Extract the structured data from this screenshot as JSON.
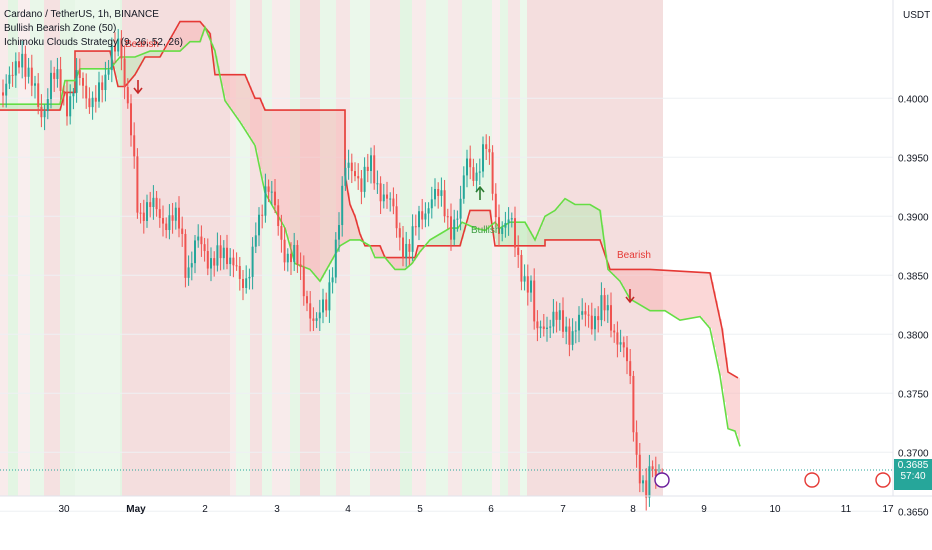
{
  "legend": {
    "symbol": "Cardano / TetherUS, 1h, BINANCE",
    "indicator1": "Bullish Bearish Zone (50)",
    "indicator2": "Ichimoku Clouds Strategy (9, 26, 52, 26)"
  },
  "axis": {
    "currency": "USDT",
    "price_ticks": [
      "0.4000",
      "0.3950",
      "0.3900",
      "0.3850",
      "0.3800",
      "0.3750",
      "0.3700",
      "0.3650"
    ],
    "date_ticks": [
      "30",
      "May",
      "2",
      "3",
      "4",
      "5",
      "6",
      "7",
      "8",
      "9",
      "10",
      "11",
      "17"
    ]
  },
  "last_price": {
    "value": "0.3685",
    "countdown": "57:40"
  },
  "colors": {
    "bull": "#26a69a",
    "bear": "#ef5350",
    "lead_red": "#e53935",
    "lead_green": "#66dd44",
    "zone_red": "#f4dede",
    "zone_green": "#e3f5e3",
    "cloud_red": "#f7b7b7",
    "cloud_green": "#bde8b6"
  },
  "annotations": [
    {
      "text": "Bearish",
      "kind": "bear"
    },
    {
      "text": "Bullish",
      "kind": "bull"
    },
    {
      "text": "Bearish",
      "kind": "bear"
    }
  ],
  "chart_data": {
    "type": "candlestick",
    "title": "Cardano / TetherUS, 1h, BINANCE",
    "ylabel": "USDT",
    "y_range": [
      0.3645,
      0.4065
    ],
    "x_ticks": [
      "30",
      "May",
      "2",
      "3",
      "4",
      "5",
      "6",
      "7",
      "8",
      "9",
      "10",
      "11",
      "17"
    ],
    "price_path": [
      [
        0,
        0.4005
      ],
      [
        10,
        0.401
      ],
      [
        20,
        0.4045
      ],
      [
        30,
        0.401
      ],
      [
        40,
        0.3985
      ],
      [
        50,
        0.402
      ],
      [
        60,
        0.4005
      ],
      [
        65,
        0.3995
      ],
      [
        75,
        0.402
      ],
      [
        85,
        0.3995
      ],
      [
        95,
        0.401
      ],
      [
        105,
        0.4005
      ],
      [
        110,
        0.404
      ],
      [
        118,
        0.406
      ],
      [
        125,
        0.3995
      ],
      [
        130,
        0.3965
      ],
      [
        133,
        0.3945
      ],
      [
        136,
        0.392
      ],
      [
        138,
        0.389
      ],
      [
        140,
        0.391
      ],
      [
        150,
        0.3905
      ],
      [
        160,
        0.39
      ],
      [
        170,
        0.39
      ],
      [
        180,
        0.3885
      ],
      [
        185,
        0.3855
      ],
      [
        195,
        0.388
      ],
      [
        205,
        0.386
      ],
      [
        215,
        0.3875
      ],
      [
        225,
        0.3855
      ],
      [
        235,
        0.387
      ],
      [
        240,
        0.3845
      ],
      [
        245,
        0.3835
      ],
      [
        250,
        0.385
      ],
      [
        255,
        0.3895
      ],
      [
        265,
        0.3925
      ],
      [
        275,
        0.39
      ],
      [
        285,
        0.387
      ],
      [
        295,
        0.386
      ],
      [
        305,
        0.3835
      ],
      [
        315,
        0.3805
      ],
      [
        325,
        0.3825
      ],
      [
        330,
        0.3855
      ],
      [
        340,
        0.3905
      ],
      [
        345,
        0.394
      ],
      [
        355,
        0.3945
      ],
      [
        360,
        0.3925
      ],
      [
        370,
        0.394
      ],
      [
        380,
        0.3925
      ],
      [
        390,
        0.3905
      ],
      [
        400,
        0.388
      ],
      [
        410,
        0.3875
      ],
      [
        420,
        0.39
      ],
      [
        430,
        0.392
      ],
      [
        440,
        0.391
      ],
      [
        450,
        0.3895
      ],
      [
        460,
        0.3905
      ],
      [
        465,
        0.3945
      ],
      [
        475,
        0.394
      ],
      [
        485,
        0.3955
      ],
      [
        490,
        0.3935
      ],
      [
        495,
        0.39
      ],
      [
        500,
        0.3895
      ],
      [
        510,
        0.389
      ],
      [
        515,
        0.387
      ],
      [
        520,
        0.386
      ],
      [
        530,
        0.3835
      ],
      [
        535,
        0.379
      ],
      [
        540,
        0.381
      ],
      [
        550,
        0.3815
      ],
      [
        560,
        0.3805
      ],
      [
        570,
        0.3805
      ],
      [
        580,
        0.381
      ],
      [
        590,
        0.3815
      ],
      [
        600,
        0.3825
      ],
      [
        610,
        0.3805
      ],
      [
        620,
        0.38
      ],
      [
        628,
        0.3765
      ],
      [
        632,
        0.372
      ],
      [
        635,
        0.3695
      ],
      [
        640,
        0.3685
      ],
      [
        645,
        0.367
      ],
      [
        650,
        0.3685
      ],
      [
        655,
        0.367
      ],
      [
        660,
        0.3685
      ]
    ],
    "ichimoku_lead_red": [
      [
        0,
        0.399
      ],
      [
        60,
        0.399
      ],
      [
        65,
        0.4005
      ],
      [
        75,
        0.4005
      ],
      [
        75,
        0.404
      ],
      [
        110,
        0.404
      ],
      [
        118,
        0.401
      ],
      [
        125,
        0.401
      ],
      [
        135,
        0.402
      ],
      [
        145,
        0.4035
      ],
      [
        160,
        0.4035
      ],
      [
        180,
        0.4065
      ],
      [
        200,
        0.4065
      ],
      [
        210,
        0.4055
      ],
      [
        215,
        0.402
      ],
      [
        245,
        0.402
      ],
      [
        255,
        0.4
      ],
      [
        260,
        0.4
      ],
      [
        265,
        0.399
      ],
      [
        345,
        0.399
      ],
      [
        345,
        0.3935
      ],
      [
        350,
        0.391
      ],
      [
        355,
        0.39
      ],
      [
        360,
        0.3885
      ],
      [
        365,
        0.3875
      ],
      [
        380,
        0.3875
      ],
      [
        385,
        0.3865
      ],
      [
        415,
        0.3865
      ],
      [
        418,
        0.3875
      ],
      [
        460,
        0.3875
      ],
      [
        470,
        0.3905
      ],
      [
        490,
        0.3905
      ],
      [
        495,
        0.3875
      ],
      [
        545,
        0.3875
      ],
      [
        545,
        0.388
      ],
      [
        600,
        0.388
      ],
      [
        610,
        0.3855
      ],
      [
        650,
        0.3855
      ],
      [
        710,
        0.3852
      ],
      [
        722,
        0.3805
      ],
      [
        728,
        0.3768
      ],
      [
        738,
        0.3763
      ]
    ],
    "ichimoku_lead_green": [
      [
        0,
        0.3995
      ],
      [
        60,
        0.3995
      ],
      [
        65,
        0.4015
      ],
      [
        75,
        0.4015
      ],
      [
        80,
        0.4025
      ],
      [
        110,
        0.4025
      ],
      [
        120,
        0.4035
      ],
      [
        135,
        0.4035
      ],
      [
        150,
        0.404
      ],
      [
        180,
        0.404
      ],
      [
        190,
        0.4048
      ],
      [
        200,
        0.4048
      ],
      [
        205,
        0.406
      ],
      [
        215,
        0.404
      ],
      [
        225,
        0.3998
      ],
      [
        240,
        0.398
      ],
      [
        255,
        0.396
      ],
      [
        265,
        0.392
      ],
      [
        285,
        0.389
      ],
      [
        295,
        0.386
      ],
      [
        310,
        0.3855
      ],
      [
        320,
        0.3845
      ],
      [
        330,
        0.386
      ],
      [
        340,
        0.3875
      ],
      [
        350,
        0.388
      ],
      [
        360,
        0.388
      ],
      [
        370,
        0.3875
      ],
      [
        375,
        0.3865
      ],
      [
        385,
        0.3865
      ],
      [
        395,
        0.3855
      ],
      [
        405,
        0.3855
      ],
      [
        412,
        0.386
      ],
      [
        420,
        0.387
      ],
      [
        430,
        0.388
      ],
      [
        440,
        0.3885
      ],
      [
        450,
        0.389
      ],
      [
        458,
        0.389
      ],
      [
        462,
        0.3895
      ],
      [
        470,
        0.3892
      ],
      [
        475,
        0.389
      ],
      [
        485,
        0.3888
      ],
      [
        495,
        0.3895
      ],
      [
        500,
        0.389
      ],
      [
        510,
        0.3895
      ],
      [
        525,
        0.3895
      ],
      [
        535,
        0.388
      ],
      [
        545,
        0.39
      ],
      [
        555,
        0.3905
      ],
      [
        565,
        0.3915
      ],
      [
        575,
        0.391
      ],
      [
        590,
        0.391
      ],
      [
        600,
        0.3905
      ],
      [
        608,
        0.3855
      ],
      [
        620,
        0.3845
      ],
      [
        630,
        0.383
      ],
      [
        650,
        0.382
      ],
      [
        665,
        0.382
      ],
      [
        680,
        0.3812
      ],
      [
        700,
        0.3815
      ],
      [
        710,
        0.3805
      ],
      [
        720,
        0.3765
      ],
      [
        728,
        0.372
      ],
      [
        735,
        0.3718
      ],
      [
        740,
        0.3705
      ]
    ]
  }
}
